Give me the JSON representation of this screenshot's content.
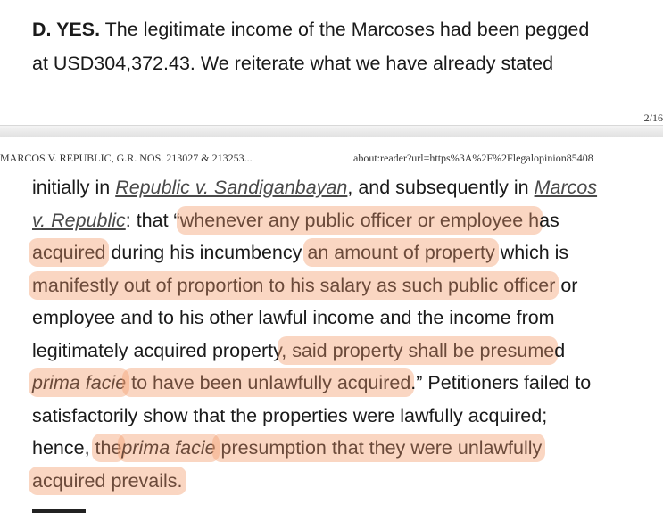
{
  "top": {
    "bold": "D. YES.",
    "line1": " The legitimate income of the Marcoses had been pegged",
    "line2": "at USD304,372.43. We reiterate what we have already stated"
  },
  "page_number": "2/16",
  "header": {
    "title": "MARCOS V. REPUBLIC, G.R. NOS. 213027 & 213253...",
    "url": "about:reader?url=https%3A%2F%2Flegalopinion85408"
  },
  "body": {
    "l1_a": "initially in ",
    "l1_link1": "Republic v. Sandiganbayan",
    "l1_b": ", and subsequently in ",
    "l1_link2": "Marcos",
    "l2_link2": "v. Republic",
    "l2_a": ": that “",
    "l2_hl": "whenever any public officer or employee h",
    "l2_b": "as",
    "l3_hl1": "acquired",
    "l3_a": " during his incumbency ",
    "l3_hl2": "an amount of property",
    "l3_b": " which is",
    "l4_hl": "manifestly out of proportion to his salary as such public officer",
    "l4_b": " or",
    "l5": "employee and to his other lawful income and the income from",
    "l6_a": "legitimately acquired property",
    "l6_hl": ", said property shall be presume",
    "l6_b": "d",
    "l7_it": "prima facie",
    "l7_hl": " to have been unlawfully acquired",
    "l7_b": ".” Petitioners failed to",
    "l8": "satisfactorily show that the properties were lawfully acquired;",
    "l9_a": "hence, ",
    "l9_hl1": "the",
    "l9_it": "prima facie",
    "l9_hl2": " presumption that they were unlawfully",
    "l10_hl": "acquired prevails."
  }
}
